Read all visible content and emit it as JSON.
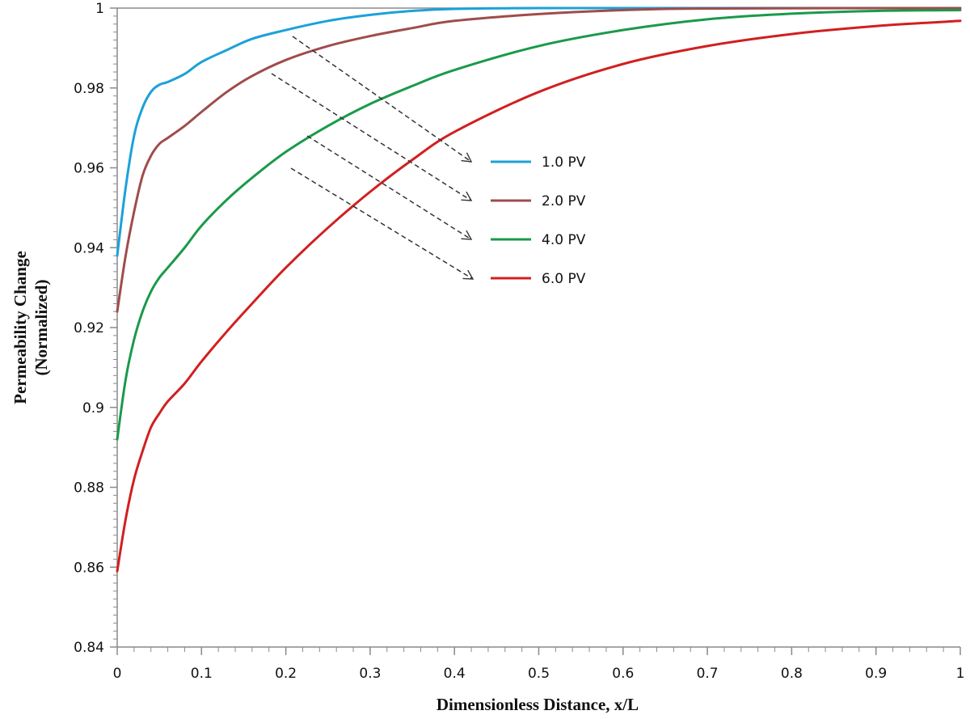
{
  "chart_data": {
    "type": "line",
    "xlabel": "Dimensionless Distance, x/L",
    "ylabel_line1": "Permeability  Change",
    "ylabel_line2": "(Normalized)",
    "xlim": [
      0,
      1
    ],
    "ylim": [
      0.84,
      1
    ],
    "x_ticks": [
      0,
      0.1,
      0.2,
      0.3,
      0.4,
      0.5,
      0.6,
      0.7,
      0.8,
      0.9,
      1
    ],
    "x_tick_labels": [
      "0",
      "0.1",
      "0.2",
      "0.3",
      "0.4",
      "0.5",
      "0.6",
      "0.7",
      "0.8",
      "0.9",
      "1"
    ],
    "y_ticks": [
      0.84,
      0.86,
      0.88,
      0.9,
      0.92,
      0.94,
      0.96,
      0.98,
      1
    ],
    "y_tick_labels": [
      "0.84",
      "0.86",
      "0.88",
      "0.9",
      "0.92",
      "0.94",
      "0.96",
      "0.98",
      "1"
    ],
    "grid": false,
    "legend_position": "center-right",
    "series": [
      {
        "name": "1.0 PV",
        "color": "#1ba1d8",
        "points": [
          [
            0,
            0.938
          ],
          [
            0.01,
            0.955
          ],
          [
            0.02,
            0.968
          ],
          [
            0.03,
            0.975
          ],
          [
            0.04,
            0.979
          ],
          [
            0.05,
            0.9808
          ],
          [
            0.06,
            0.9815
          ],
          [
            0.08,
            0.9835
          ],
          [
            0.1,
            0.9865
          ],
          [
            0.13,
            0.9895
          ],
          [
            0.16,
            0.9923
          ],
          [
            0.2,
            0.9945
          ],
          [
            0.25,
            0.9968
          ],
          [
            0.3,
            0.9983
          ],
          [
            0.35,
            0.9993
          ],
          [
            0.4,
            0.9998
          ],
          [
            0.5,
            1.0
          ],
          [
            0.7,
            1.0
          ],
          [
            1.0,
            1.0
          ]
        ]
      },
      {
        "name": "2.0 PV",
        "color": "#a04c4c",
        "points": [
          [
            0,
            0.924
          ],
          [
            0.01,
            0.938
          ],
          [
            0.02,
            0.949
          ],
          [
            0.03,
            0.958
          ],
          [
            0.04,
            0.963
          ],
          [
            0.05,
            0.966
          ],
          [
            0.06,
            0.9675
          ],
          [
            0.08,
            0.9705
          ],
          [
            0.1,
            0.974
          ],
          [
            0.13,
            0.979
          ],
          [
            0.16,
            0.983
          ],
          [
            0.2,
            0.987
          ],
          [
            0.25,
            0.9905
          ],
          [
            0.3,
            0.993
          ],
          [
            0.35,
            0.995
          ],
          [
            0.4,
            0.9968
          ],
          [
            0.5,
            0.9985
          ],
          [
            0.6,
            0.9995
          ],
          [
            0.7,
            0.9999
          ],
          [
            1.0,
            1.0
          ]
        ]
      },
      {
        "name": "4.0 PV",
        "color": "#1a9a4a",
        "points": [
          [
            0,
            0.892
          ],
          [
            0.01,
            0.907
          ],
          [
            0.02,
            0.917
          ],
          [
            0.03,
            0.924
          ],
          [
            0.04,
            0.929
          ],
          [
            0.05,
            0.9325
          ],
          [
            0.06,
            0.935
          ],
          [
            0.08,
            0.94
          ],
          [
            0.1,
            0.9455
          ],
          [
            0.13,
            0.952
          ],
          [
            0.16,
            0.9575
          ],
          [
            0.2,
            0.964
          ],
          [
            0.25,
            0.9705
          ],
          [
            0.3,
            0.976
          ],
          [
            0.35,
            0.9805
          ],
          [
            0.4,
            0.9845
          ],
          [
            0.5,
            0.9905
          ],
          [
            0.6,
            0.9945
          ],
          [
            0.7,
            0.9972
          ],
          [
            0.8,
            0.9986
          ],
          [
            0.9,
            0.9993
          ],
          [
            1.0,
            0.9995
          ]
        ]
      },
      {
        "name": "6.0 PV",
        "color": "#d11f1f",
        "points": [
          [
            0,
            0.859
          ],
          [
            0.01,
            0.872
          ],
          [
            0.02,
            0.882
          ],
          [
            0.03,
            0.889
          ],
          [
            0.04,
            0.895
          ],
          [
            0.05,
            0.8985
          ],
          [
            0.06,
            0.9015
          ],
          [
            0.08,
            0.906
          ],
          [
            0.1,
            0.9115
          ],
          [
            0.13,
            0.919
          ],
          [
            0.16,
            0.926
          ],
          [
            0.2,
            0.935
          ],
          [
            0.25,
            0.945
          ],
          [
            0.3,
            0.954
          ],
          [
            0.35,
            0.962
          ],
          [
            0.4,
            0.969
          ],
          [
            0.5,
            0.979
          ],
          [
            0.6,
            0.986
          ],
          [
            0.7,
            0.9905
          ],
          [
            0.8,
            0.9935
          ],
          [
            0.9,
            0.9955
          ],
          [
            1.0,
            0.9968
          ]
        ]
      }
    ],
    "annotations": {
      "type": "dashed-arrows",
      "count": 4,
      "color": "#333333"
    }
  }
}
